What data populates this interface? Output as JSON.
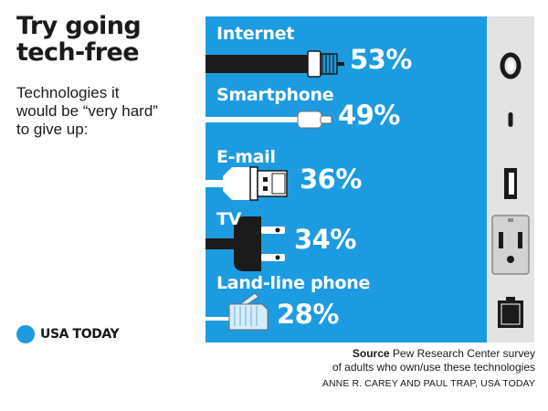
{
  "header": {
    "title_line1": "Try going",
    "title_line2": "tech-free",
    "subtitle_line1": "Technologies it",
    "subtitle_line2": "would be “very hard”",
    "subtitle_line3": "to give up:"
  },
  "brand": {
    "name": "USA TODAY",
    "dot_color": "#1c9be0"
  },
  "colors": {
    "panel": "#1c9be0",
    "outlet_panel": "#e3e3e3",
    "cable": "#1a1a1a",
    "text_on_panel": "#ffffff"
  },
  "chart_data": {
    "type": "bar",
    "categories": [
      "Internet",
      "Smartphone",
      "E-mail",
      "TV",
      "Land-line phone"
    ],
    "values": [
      53,
      49,
      36,
      34,
      28
    ],
    "value_labels": [
      "53%",
      "49%",
      "36%",
      "34%",
      "28%"
    ],
    "unit": "%",
    "cable_icons": [
      "coaxial-cable-icon",
      "lightning-cable-icon",
      "usb-cable-icon",
      "power-plug-icon",
      "phone-jack-cable-icon"
    ],
    "outlet_icons": [
      "coaxial-port-icon",
      "lightning-port-icon",
      "usb-port-icon",
      "power-outlet-icon",
      "phone-jack-port-icon"
    ]
  },
  "footer": {
    "source_label": "Source",
    "source_text": "Pew Research Center survey",
    "source_line2": "of adults who own/use these technologies",
    "credit": "ANNE R. CAREY AND PAUL TRAP, USA TODAY"
  }
}
